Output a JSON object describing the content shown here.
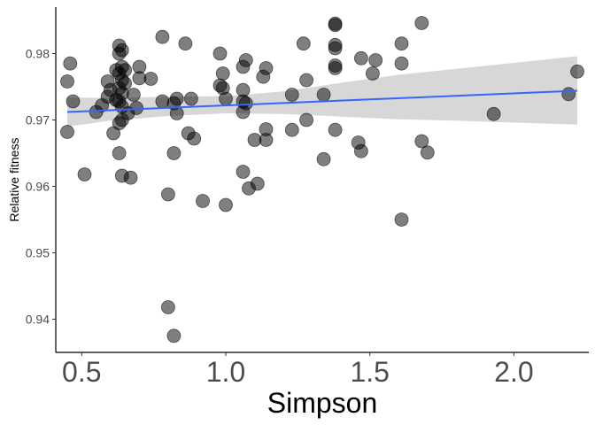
{
  "chart_data": {
    "type": "scatter",
    "xlabel": "Simpson",
    "ylabel": "Relative fitness",
    "xlim": [
      0.41,
      2.26
    ],
    "ylim": [
      0.935,
      0.987
    ],
    "xticks": [
      0.5,
      1.0,
      1.5,
      2.0
    ],
    "xtick_labels": [
      "0.5",
      "1.0",
      "1.5",
      "2.0"
    ],
    "yticks": [
      0.94,
      0.95,
      0.96,
      0.97,
      0.98
    ],
    "ytick_labels": [
      "0.94",
      "0.95",
      "0.96",
      "0.97",
      "0.98"
    ],
    "grid": false,
    "colors": {
      "points": "#000000",
      "trend": "#3366ff",
      "ribbon": "#bdbdbd"
    },
    "points": [
      [
        0.45,
        0.9758
      ],
      [
        0.46,
        0.9785
      ],
      [
        0.47,
        0.9728
      ],
      [
        0.45,
        0.9682
      ],
      [
        0.51,
        0.9618
      ],
      [
        0.55,
        0.9712
      ],
      [
        0.57,
        0.9722
      ],
      [
        0.59,
        0.9758
      ],
      [
        0.59,
        0.9735
      ],
      [
        0.6,
        0.9745
      ],
      [
        0.61,
        0.968
      ],
      [
        0.62,
        0.973
      ],
      [
        0.62,
        0.9775
      ],
      [
        0.63,
        0.9812
      ],
      [
        0.63,
        0.98
      ],
      [
        0.63,
        0.977
      ],
      [
        0.63,
        0.9748
      ],
      [
        0.63,
        0.9728
      ],
      [
        0.63,
        0.9695
      ],
      [
        0.63,
        0.965
      ],
      [
        0.64,
        0.9805
      ],
      [
        0.64,
        0.978
      ],
      [
        0.64,
        0.976
      ],
      [
        0.64,
        0.974
      ],
      [
        0.64,
        0.972
      ],
      [
        0.64,
        0.97
      ],
      [
        0.64,
        0.9616
      ],
      [
        0.65,
        0.9775
      ],
      [
        0.65,
        0.9755
      ],
      [
        0.66,
        0.971
      ],
      [
        0.67,
        0.9613
      ],
      [
        0.68,
        0.9738
      ],
      [
        0.69,
        0.9718
      ],
      [
        0.7,
        0.978
      ],
      [
        0.7,
        0.9763
      ],
      [
        0.74,
        0.9762
      ],
      [
        0.78,
        0.9825
      ],
      [
        0.78,
        0.9728
      ],
      [
        0.8,
        0.9588
      ],
      [
        0.8,
        0.9418
      ],
      [
        0.82,
        0.9375
      ],
      [
        0.82,
        0.965
      ],
      [
        0.82,
        0.9725
      ],
      [
        0.83,
        0.9732
      ],
      [
        0.83,
        0.971
      ],
      [
        0.86,
        0.9815
      ],
      [
        0.87,
        0.968
      ],
      [
        0.88,
        0.9732
      ],
      [
        0.89,
        0.9672
      ],
      [
        0.92,
        0.9578
      ],
      [
        0.98,
        0.98
      ],
      [
        0.98,
        0.9752
      ],
      [
        0.99,
        0.977
      ],
      [
        0.99,
        0.9748
      ],
      [
        1.0,
        0.9732
      ],
      [
        1.0,
        0.9572
      ],
      [
        1.06,
        0.978
      ],
      [
        1.06,
        0.9745
      ],
      [
        1.06,
        0.9728
      ],
      [
        1.06,
        0.9712
      ],
      [
        1.06,
        0.9622
      ],
      [
        1.07,
        0.979
      ],
      [
        1.07,
        0.9725
      ],
      [
        1.08,
        0.9597
      ],
      [
        1.1,
        0.967
      ],
      [
        1.11,
        0.9604
      ],
      [
        1.13,
        0.9765
      ],
      [
        1.14,
        0.9778
      ],
      [
        1.14,
        0.967
      ],
      [
        1.14,
        0.9686
      ],
      [
        1.23,
        0.9685
      ],
      [
        1.23,
        0.9738
      ],
      [
        1.27,
        0.9815
      ],
      [
        1.28,
        0.976
      ],
      [
        1.28,
        0.97
      ],
      [
        1.34,
        0.9738
      ],
      [
        1.34,
        0.9641
      ],
      [
        1.38,
        0.9845
      ],
      [
        1.38,
        0.9843
      ],
      [
        1.38,
        0.9813
      ],
      [
        1.38,
        0.9808
      ],
      [
        1.38,
        0.9782
      ],
      [
        1.38,
        0.9778
      ],
      [
        1.38,
        0.9685
      ],
      [
        1.46,
        0.9666
      ],
      [
        1.47,
        0.9653
      ],
      [
        1.47,
        0.9793
      ],
      [
        1.51,
        0.977
      ],
      [
        1.52,
        0.979
      ],
      [
        1.61,
        0.9815
      ],
      [
        1.61,
        0.9785
      ],
      [
        1.61,
        0.955
      ],
      [
        1.68,
        0.9846
      ],
      [
        1.68,
        0.9668
      ],
      [
        1.7,
        0.9651
      ],
      [
        1.93,
        0.9709
      ],
      [
        2.19,
        0.9739
      ],
      [
        2.22,
        0.9773
      ]
    ],
    "trend": {
      "x": [
        0.45,
        2.22
      ],
      "y": [
        0.9712,
        0.9744
      ]
    },
    "band": {
      "x": [
        0.45,
        0.6,
        0.8,
        1.0,
        1.2,
        1.4,
        1.6,
        1.8,
        2.0,
        2.22
      ],
      "lower": [
        0.969,
        0.9699,
        0.9706,
        0.971,
        0.9709,
        0.9705,
        0.9701,
        0.9699,
        0.9696,
        0.9693
      ],
      "upper": [
        0.9734,
        0.9733,
        0.9735,
        0.9736,
        0.9743,
        0.9756,
        0.9768,
        0.9777,
        0.9786,
        0.9796
      ]
    }
  }
}
